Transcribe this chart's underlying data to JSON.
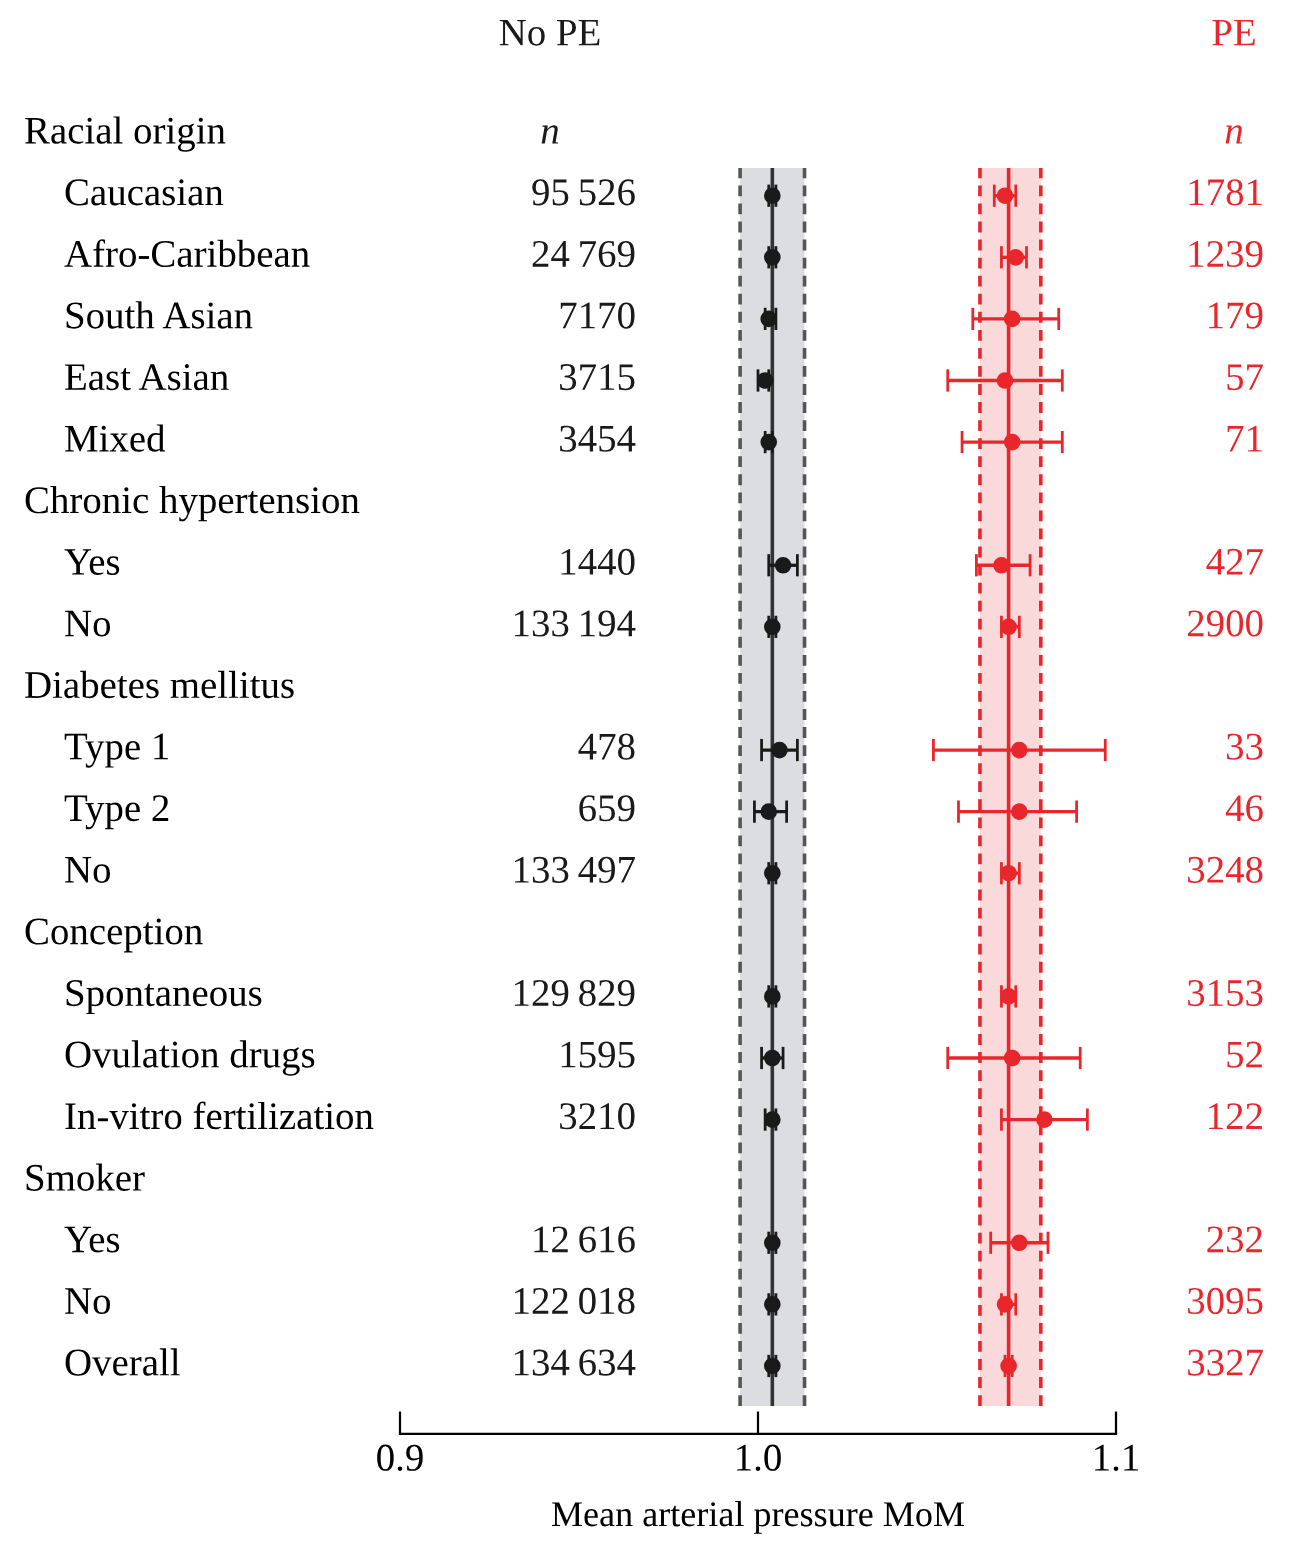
{
  "chart_data": {
    "type": "scatter",
    "orientation": "horizontal",
    "categories": [
      null,
      "Caucasian",
      "Afro-Caribbean",
      "South Asian",
      "East Asian",
      "Mixed",
      null,
      "Yes",
      "No",
      null,
      "Type 1",
      "Type 2",
      "No",
      null,
      "Spontaneous",
      "Ovulation drugs",
      "In-vitro fertilization",
      null,
      "Yes",
      "No",
      "Overall"
    ],
    "series": [
      {
        "name": "No PE",
        "color": "#1a1a1a",
        "values": [
          null,
          1.004,
          1.004,
          1.003,
          1.002,
          1.003,
          null,
          1.007,
          1.004,
          null,
          1.006,
          1.003,
          1.004,
          null,
          1.004,
          1.004,
          1.004,
          null,
          1.004,
          1.004,
          1.004
        ],
        "errors": [
          null,
          [
            1.003,
            1.005
          ],
          [
            1.003,
            1.005
          ],
          [
            1.002,
            1.005
          ],
          [
            1.0,
            1.003
          ],
          [
            1.002,
            1.004
          ],
          null,
          [
            1.003,
            1.011
          ],
          [
            1.003,
            1.005
          ],
          null,
          [
            1.001,
            1.011
          ],
          [
            0.999,
            1.008
          ],
          [
            1.003,
            1.005
          ],
          null,
          [
            1.003,
            1.005
          ],
          [
            1.001,
            1.007
          ],
          [
            1.002,
            1.005
          ],
          null,
          [
            1.003,
            1.005
          ],
          [
            1.003,
            1.005
          ],
          [
            1.003,
            1.005
          ]
        ]
      },
      {
        "name": "PE",
        "color": "#e8262c",
        "values": [
          null,
          1.069,
          1.072,
          1.071,
          1.069,
          1.071,
          null,
          1.068,
          1.07,
          null,
          1.073,
          1.073,
          1.07,
          null,
          1.07,
          1.071,
          1.08,
          null,
          1.073,
          1.069,
          1.07
        ],
        "errors": [
          null,
          [
            1.066,
            1.072
          ],
          [
            1.068,
            1.075
          ],
          [
            1.06,
            1.084
          ],
          [
            1.053,
            1.085
          ],
          [
            1.057,
            1.085
          ],
          null,
          [
            1.061,
            1.076
          ],
          [
            1.068,
            1.073
          ],
          null,
          [
            1.049,
            1.097
          ],
          [
            1.056,
            1.089
          ],
          [
            1.068,
            1.073
          ],
          null,
          [
            1.068,
            1.072
          ],
          [
            1.053,
            1.09
          ],
          [
            1.068,
            1.092
          ],
          null,
          [
            1.065,
            1.081
          ],
          [
            1.068,
            1.072
          ],
          [
            1.069,
            1.071
          ]
        ]
      }
    ],
    "annotations": [
      "Racial origin",
      "n",
      "n",
      "95 526",
      "1781",
      "24 769",
      "1239",
      "7170",
      "179",
      "3715",
      "57",
      "3454",
      "71",
      "Chronic hypertension",
      "1440",
      "427",
      "133 194",
      "2900",
      "Diabetes mellitus",
      "478",
      "33",
      "659",
      "46",
      "133 497",
      "3248",
      "Conception",
      "129 829",
      "3153",
      "1595",
      "52",
      "3210",
      "122",
      "Smoker",
      "12 616",
      "232",
      "122 018",
      "3095",
      "134 634",
      "3327"
    ],
    "xlabel": "Mean arterial pressure MoM",
    "xlim": [
      0.9,
      1.1
    ],
    "xticks": [
      0.9,
      {
        "value": 1.0,
        "label": "1.0"
      },
      1.1
    ],
    "bands": [
      {
        "axis": "x",
        "from": 0.995,
        "to": 1.013,
        "color": "#dcdde0"
      },
      {
        "axis": "x",
        "from": 1.062,
        "to": 1.079,
        "color": "#f9d9da"
      }
    ],
    "ref_lines": [
      {
        "axis": "x",
        "value": 1.004,
        "color": "#333333",
        "line_style": "solid"
      },
      {
        "axis": "x",
        "value": 0.995,
        "color": "#555555",
        "line_style": "dashed"
      },
      {
        "axis": "x",
        "value": 1.013,
        "color": "#555555",
        "line_style": "dashed"
      },
      {
        "axis": "x",
        "value": 1.07,
        "color": "#e8262c",
        "line_style": "solid"
      },
      {
        "axis": "x",
        "value": 1.062,
        "color": "#e8262c",
        "line_style": "dashed"
      },
      {
        "axis": "x",
        "value": 1.079,
        "color": "#e8262c",
        "line_style": "dashed"
      }
    ],
    "marker": "circle",
    "grid": false,
    "legend": false
  }
}
